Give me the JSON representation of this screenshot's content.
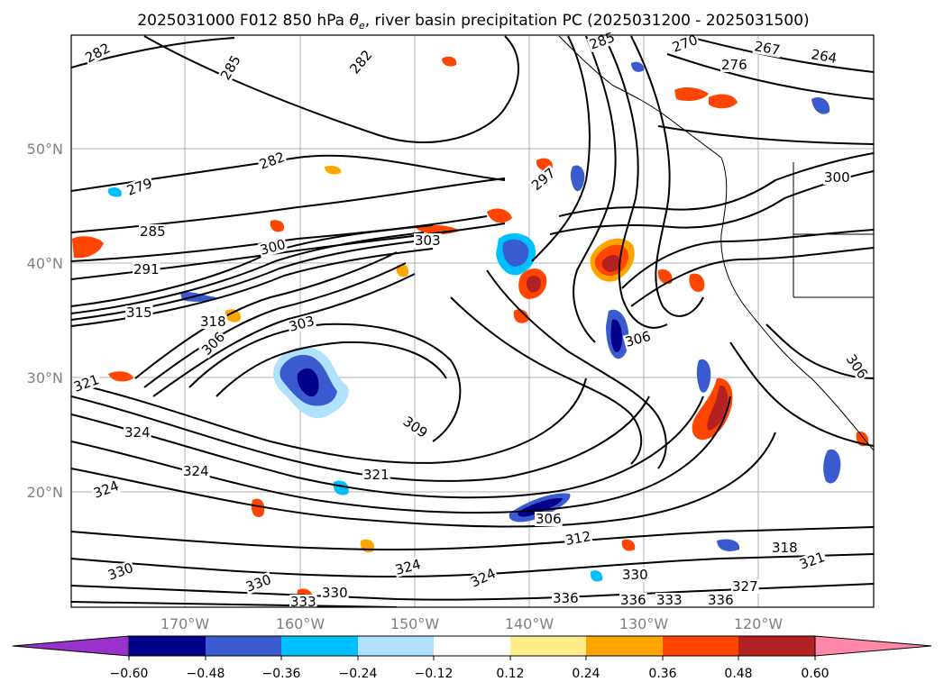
{
  "title_prefix": "2025031000 F012 850 hPa ",
  "title_symbol": "θ",
  "title_symbol_sub": "e",
  "title_suffix": ", river basin precipitation PC (2025031200 - 2025031500)",
  "map": {
    "lon_labels": [
      "170°W",
      "160°W",
      "150°W",
      "140°W",
      "130°W",
      "120°W"
    ],
    "lat_labels": [
      "50°N",
      "40°N",
      "30°N",
      "20°N"
    ],
    "contour_labels": [
      {
        "text": "282"
      },
      {
        "text": "285"
      },
      {
        "text": "282"
      },
      {
        "text": "279"
      },
      {
        "text": "285"
      },
      {
        "text": "291"
      },
      {
        "text": "282"
      },
      {
        "text": "300"
      },
      {
        "text": "303"
      },
      {
        "text": "297"
      },
      {
        "text": "315"
      },
      {
        "text": "318"
      },
      {
        "text": "303"
      },
      {
        "text": "306"
      },
      {
        "text": "321"
      },
      {
        "text": "309"
      },
      {
        "text": "324"
      },
      {
        "text": "324"
      },
      {
        "text": "321"
      },
      {
        "text": "324"
      },
      {
        "text": "306"
      },
      {
        "text": "312"
      },
      {
        "text": "324"
      },
      {
        "text": "324"
      },
      {
        "text": "330"
      },
      {
        "text": "330"
      },
      {
        "text": "336"
      },
      {
        "text": "336"
      },
      {
        "text": "333"
      },
      {
        "text": "336"
      },
      {
        "text": "327"
      },
      {
        "text": "321"
      },
      {
        "text": "318"
      },
      {
        "text": "306"
      },
      {
        "text": "285"
      },
      {
        "text": "270"
      },
      {
        "text": "276"
      },
      {
        "text": "267"
      },
      {
        "text": "264"
      },
      {
        "text": "300"
      },
      {
        "text": "330"
      },
      {
        "text": "333"
      },
      {
        "text": "330"
      },
      {
        "text": "306"
      }
    ]
  },
  "colorbar": {
    "ticks": [
      "−0.60",
      "−0.48",
      "−0.36",
      "−0.24",
      "−0.12",
      "0.12",
      "0.24",
      "0.36",
      "0.48",
      "0.60"
    ],
    "colors": [
      "#9932cc",
      "#00008b",
      "#3a5bd0",
      "#00bfff",
      "#b0e2ff",
      "#ffffff",
      "#ffec8b",
      "#ffa500",
      "#ff4500",
      "#b22222",
      "#ff88aa"
    ]
  }
}
